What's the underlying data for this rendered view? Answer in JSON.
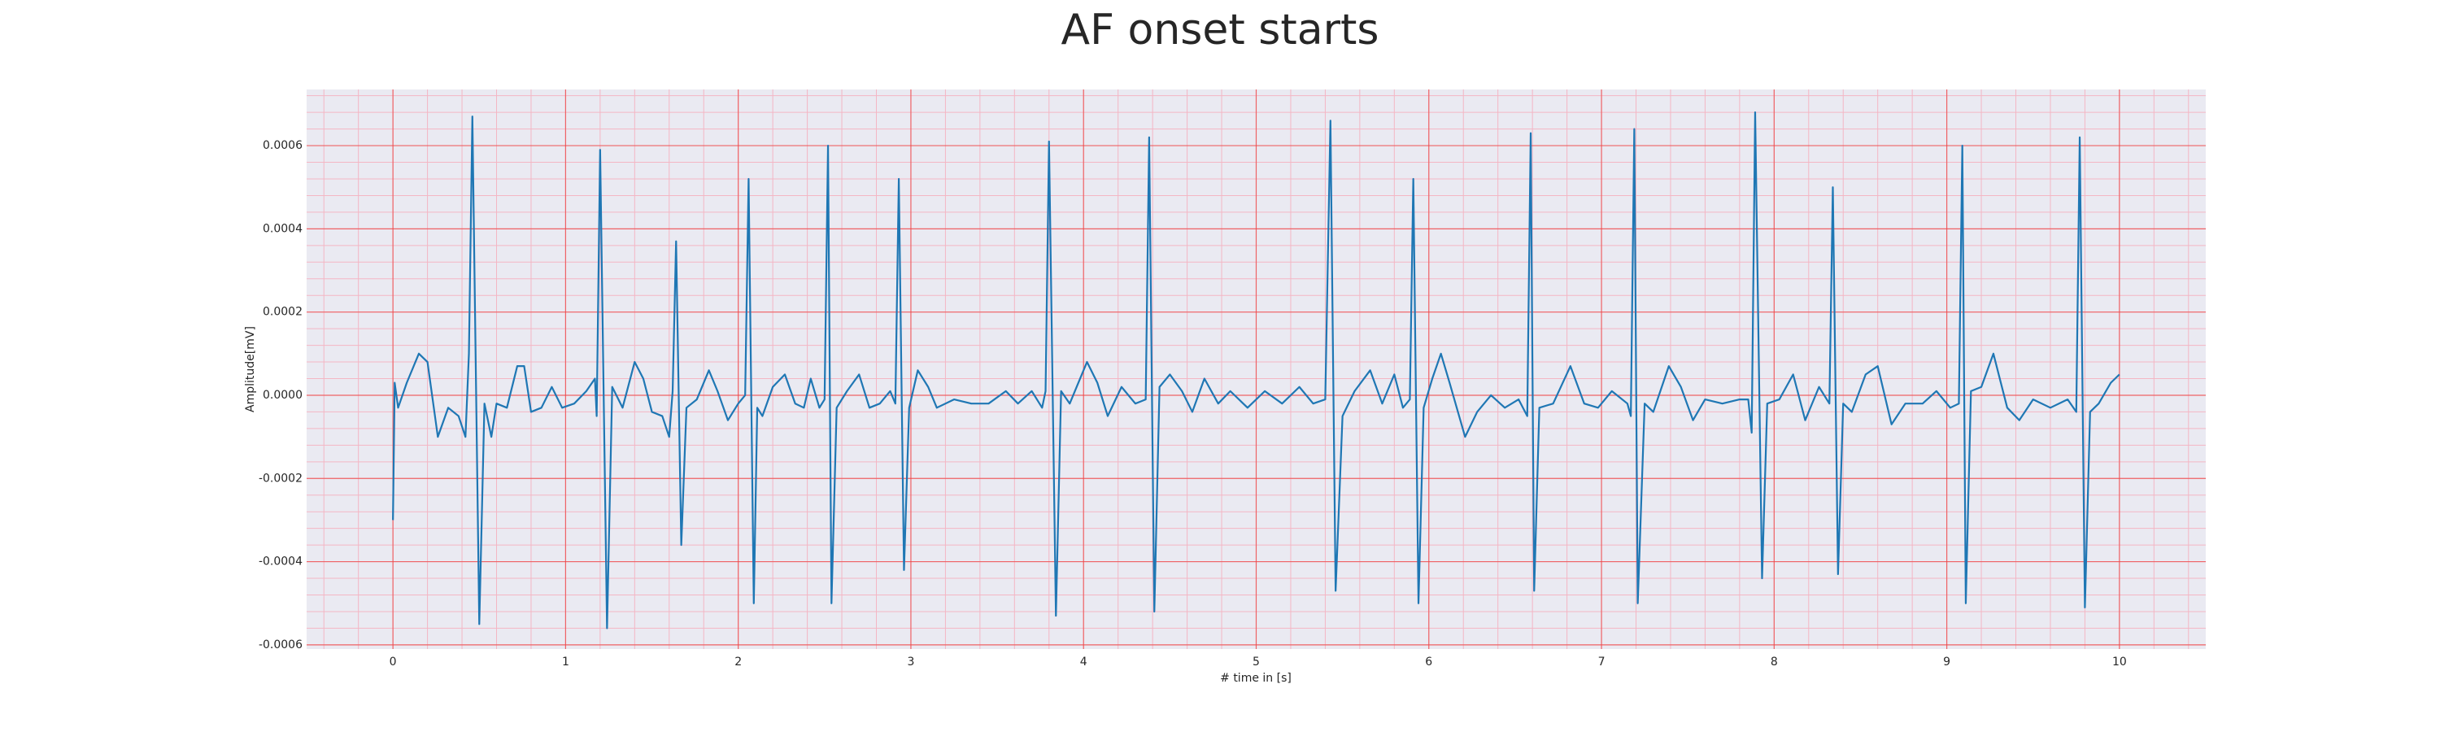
{
  "chart_data": {
    "type": "line",
    "title": "AF onset starts",
    "xlabel": "# time in [s]",
    "ylabel": "Amplitude[mV]",
    "color": "#1f77b4",
    "grid": true,
    "xlim": [
      -0.5,
      10.5
    ],
    "ylim": [
      -0.00061,
      0.000735
    ],
    "xticks": [
      0,
      1,
      2,
      3,
      4,
      5,
      6,
      7,
      8,
      9,
      10
    ],
    "yticks": [
      -0.0006,
      -0.0004,
      -0.0002,
      {
        "value": 0,
        "label": "0.0000"
      },
      0.0002,
      0.0004,
      0.0006
    ],
    "x": [
      0,
      0.01,
      0.03,
      0.08,
      0.15,
      0.2,
      0.26,
      0.32,
      0.38,
      0.42,
      0.44,
      0.46,
      0.5,
      0.53,
      0.57,
      0.6,
      0.66,
      0.72,
      0.76,
      0.8,
      0.86,
      0.92,
      0.98,
      1.05,
      1.12,
      1.17,
      1.18,
      1.2,
      1.24,
      1.27,
      1.33,
      1.4,
      1.45,
      1.5,
      1.56,
      1.6,
      1.62,
      1.64,
      1.67,
      1.7,
      1.76,
      1.83,
      1.88,
      1.94,
      2,
      2.04,
      2.06,
      2.09,
      2.11,
      2.14,
      2.2,
      2.27,
      2.33,
      2.38,
      2.42,
      2.47,
      2.5,
      2.52,
      2.54,
      2.57,
      2.63,
      2.7,
      2.76,
      2.82,
      2.88,
      2.91,
      2.93,
      2.96,
      2.99,
      3.04,
      3.1,
      3.15,
      3.25,
      3.35,
      3.45,
      3.55,
      3.62,
      3.7,
      3.76,
      3.78,
      3.8,
      3.84,
      3.87,
      3.92,
      4.02,
      4.08,
      4.14,
      4.22,
      4.3,
      4.36,
      4.38,
      4.41,
      4.44,
      4.5,
      4.57,
      4.63,
      4.7,
      4.78,
      4.85,
      4.95,
      5.05,
      5.15,
      5.25,
      5.33,
      5.4,
      5.43,
      5.46,
      5.5,
      5.57,
      5.66,
      5.73,
      5.8,
      5.85,
      5.89,
      5.91,
      5.94,
      5.97,
      6.02,
      6.07,
      6.12,
      6.21,
      6.28,
      6.36,
      6.44,
      6.52,
      6.57,
      6.59,
      6.61,
      6.64,
      6.72,
      6.82,
      6.9,
      6.98,
      7.06,
      7.15,
      7.17,
      7.19,
      7.21,
      7.25,
      7.3,
      7.39,
      7.46,
      7.53,
      7.6,
      7.7,
      7.8,
      7.85,
      7.87,
      7.89,
      7.93,
      7.96,
      8.03,
      8.11,
      8.18,
      8.26,
      8.32,
      8.34,
      8.37,
      8.4,
      8.45,
      8.53,
      8.6,
      8.68,
      8.76,
      8.86,
      8.94,
      9.02,
      9.07,
      9.09,
      9.11,
      9.14,
      9.2,
      9.27,
      9.35,
      9.42,
      9.5,
      9.6,
      9.7,
      9.75,
      9.77,
      9.8,
      9.83,
      9.88,
      9.95,
      10
    ],
    "values": [
      -0.0003,
      3e-05,
      -3e-05,
      3e-05,
      0.0001,
      8e-05,
      -0.0001,
      -3e-05,
      -5e-05,
      -0.0001,
      0.0001,
      0.00067,
      -0.00055,
      -2e-05,
      -0.0001,
      -2e-05,
      -3e-05,
      7e-05,
      7e-05,
      -4e-05,
      -3e-05,
      2e-05,
      -3e-05,
      -2e-05,
      1e-05,
      4e-05,
      -5e-05,
      0.00059,
      -0.00056,
      2e-05,
      -3e-05,
      8e-05,
      4e-05,
      -4e-05,
      -5e-05,
      -0.0001,
      1e-05,
      0.00037,
      -0.00036,
      -3e-05,
      -1e-05,
      6e-05,
      1e-05,
      -6e-05,
      -2e-05,
      0,
      0.00052,
      -0.0005,
      -3e-05,
      -5e-05,
      2e-05,
      5e-05,
      -2e-05,
      -3e-05,
      4e-05,
      -3e-05,
      -1e-05,
      0.0006,
      -0.0005,
      -3e-05,
      1e-05,
      5e-05,
      -3e-05,
      -2e-05,
      1e-05,
      -2e-05,
      0.00052,
      -0.00042,
      -3e-05,
      6e-05,
      2e-05,
      -3e-05,
      -1e-05,
      -2e-05,
      -2e-05,
      1e-05,
      -2e-05,
      1e-05,
      -3e-05,
      1e-05,
      0.00061,
      -0.00053,
      1e-05,
      -2e-05,
      8e-05,
      3e-05,
      -5e-05,
      2e-05,
      -2e-05,
      -1e-05,
      0.00062,
      -0.00052,
      2e-05,
      5e-05,
      1e-05,
      -4e-05,
      4e-05,
      -2e-05,
      1e-05,
      -3e-05,
      1e-05,
      -2e-05,
      2e-05,
      -2e-05,
      -1e-05,
      0.00066,
      -0.00047,
      -5e-05,
      1e-05,
      6e-05,
      -2e-05,
      5e-05,
      -3e-05,
      -1e-05,
      0.00052,
      -0.0005,
      -3e-05,
      4e-05,
      0.0001,
      3e-05,
      -0.0001,
      -4e-05,
      0,
      -3e-05,
      -1e-05,
      -5e-05,
      0.00063,
      -0.00047,
      -3e-05,
      -2e-05,
      7e-05,
      -2e-05,
      -3e-05,
      1e-05,
      -2e-05,
      -5e-05,
      0.00064,
      -0.0005,
      -2e-05,
      -4e-05,
      7e-05,
      2e-05,
      -6e-05,
      -1e-05,
      -2e-05,
      -1e-05,
      -1e-05,
      -9e-05,
      0.00068,
      -0.00044,
      -2e-05,
      -1e-05,
      5e-05,
      -6e-05,
      2e-05,
      -2e-05,
      0.0005,
      -0.00043,
      -2e-05,
      -4e-05,
      5e-05,
      7e-05,
      -7e-05,
      -2e-05,
      -2e-05,
      1e-05,
      -3e-05,
      -2e-05,
      0.0006,
      -0.0005,
      1e-05,
      2e-05,
      0.0001,
      -3e-05,
      -6e-05,
      -1e-05,
      -3e-05,
      -1e-05,
      -4e-05,
      0.00062,
      -0.00051,
      -4e-05,
      -2e-05,
      3e-05,
      5e-05
    ]
  }
}
